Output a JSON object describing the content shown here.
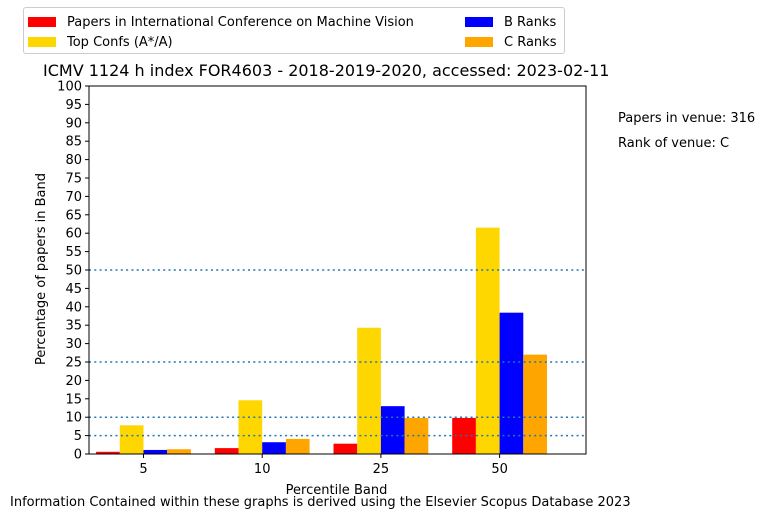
{
  "chart_data": {
    "type": "bar",
    "title": "ICMV 1124 h index FOR4603 - 2018-2019-2020, accessed: 2023-02-11",
    "xlabel": "Percentile Band",
    "ylabel": "Percentage of papers in Band",
    "categories": [
      "5",
      "10",
      "25",
      "50"
    ],
    "ylim": [
      0,
      100
    ],
    "yticks": [
      "0",
      "5",
      "10",
      "15",
      "20",
      "25",
      "30",
      "35",
      "40",
      "45",
      "50",
      "55",
      "60",
      "65",
      "70",
      "75",
      "80",
      "85",
      "90",
      "95",
      "100"
    ],
    "reference_lines": [
      5,
      10,
      25,
      50
    ],
    "legend_position": "top-left (above plot)",
    "series": [
      {
        "name": "Papers in International Conference on Machine Vision",
        "color": "#ff0000",
        "values": [
          0.6,
          1.6,
          2.8,
          9.8
        ]
      },
      {
        "name": "Top Confs (A*/A)",
        "color": "#ffd700",
        "values": [
          7.8,
          14.6,
          34.3,
          61.5
        ]
      },
      {
        "name": "B Ranks",
        "color": "#0000ff",
        "values": [
          1.1,
          3.2,
          13.0,
          38.4
        ]
      },
      {
        "name": "C Ranks",
        "color": "#ffa500",
        "values": [
          1.3,
          4.1,
          9.8,
          27.0
        ]
      }
    ]
  },
  "annotations": {
    "papers_in_venue": "Papers in venue: 316",
    "rank_of_venue": "Rank of venue: C"
  },
  "footer": "Information Contained within these graphs is derived using the Elsevier Scopus Database 2023"
}
